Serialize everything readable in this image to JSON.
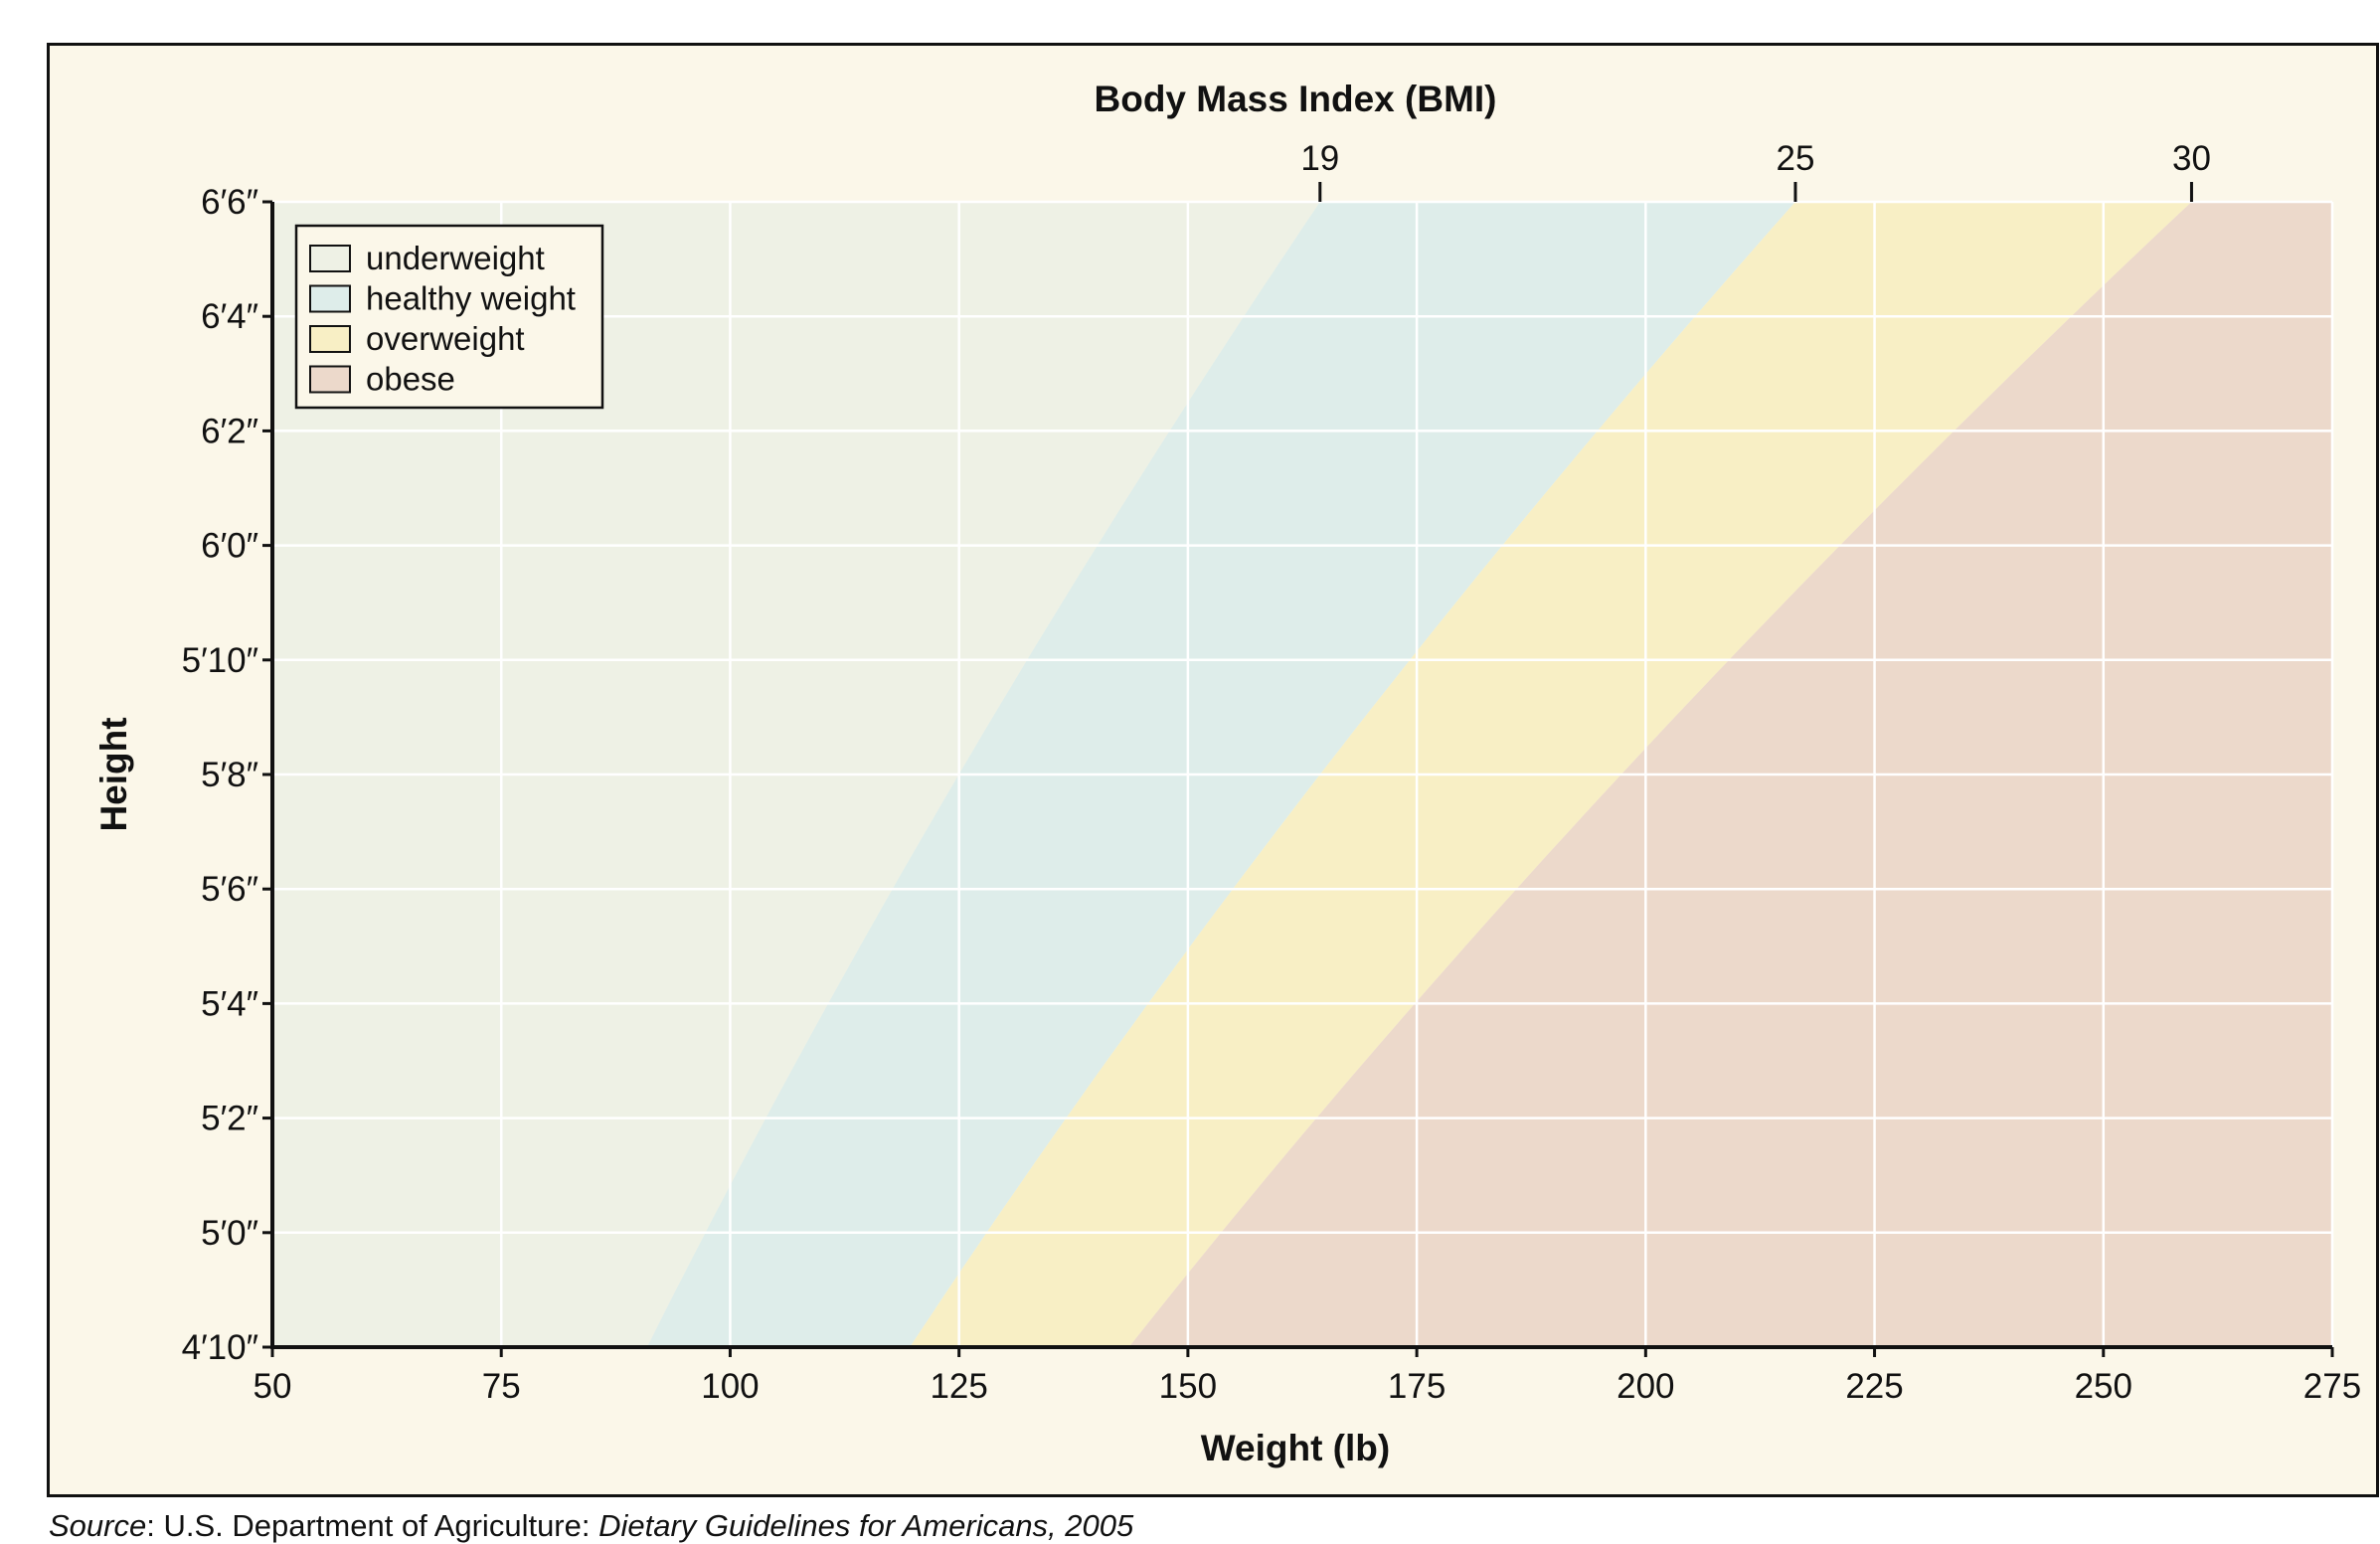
{
  "chart_data": {
    "type": "area",
    "title": "Body Mass Index (BMI)",
    "xlabel": "Weight (lb)",
    "ylabel": "Height",
    "xlim": [
      50,
      275
    ],
    "ylim": [
      58,
      78
    ],
    "x_ticks": [
      50,
      75,
      100,
      125,
      150,
      175,
      200,
      225,
      250,
      275
    ],
    "x_tick_labels": [
      "50",
      "75",
      "100",
      "125",
      "150",
      "175",
      "200",
      "225",
      "250",
      "275"
    ],
    "y_ticks": [
      58,
      60,
      62,
      64,
      66,
      68,
      70,
      72,
      74,
      76,
      78
    ],
    "y_tick_labels": [
      "4′10″",
      "5′0″",
      "5′2″",
      "5′4″",
      "5′6″",
      "5′8″",
      "5′10″",
      "6′0″",
      "6′2″",
      "6′4″",
      "6′6″"
    ],
    "bmi_boundaries": [
      19,
      25,
      30
    ],
    "bmi_boundary_labels": [
      "19",
      "25",
      "30"
    ],
    "grid": true,
    "legend_position": "top-left",
    "series": [
      {
        "name": "underweight",
        "color": "#eef1e5",
        "bmi_range": [
          0,
          19
        ]
      },
      {
        "name": "healthy weight",
        "color": "#deedea",
        "bmi_range": [
          19,
          25
        ]
      },
      {
        "name": "overweight",
        "color": "#f8efc5",
        "bmi_range": [
          25,
          30
        ]
      },
      {
        "name": "obese",
        "color": "#ecd9cb",
        "bmi_range": [
          30,
          1000
        ]
      }
    ]
  },
  "source": {
    "label": "Source",
    "publisher": ": U.S. Department of Agriculture: ",
    "publication": "Dietary Guidelines for Americans, 2005"
  }
}
